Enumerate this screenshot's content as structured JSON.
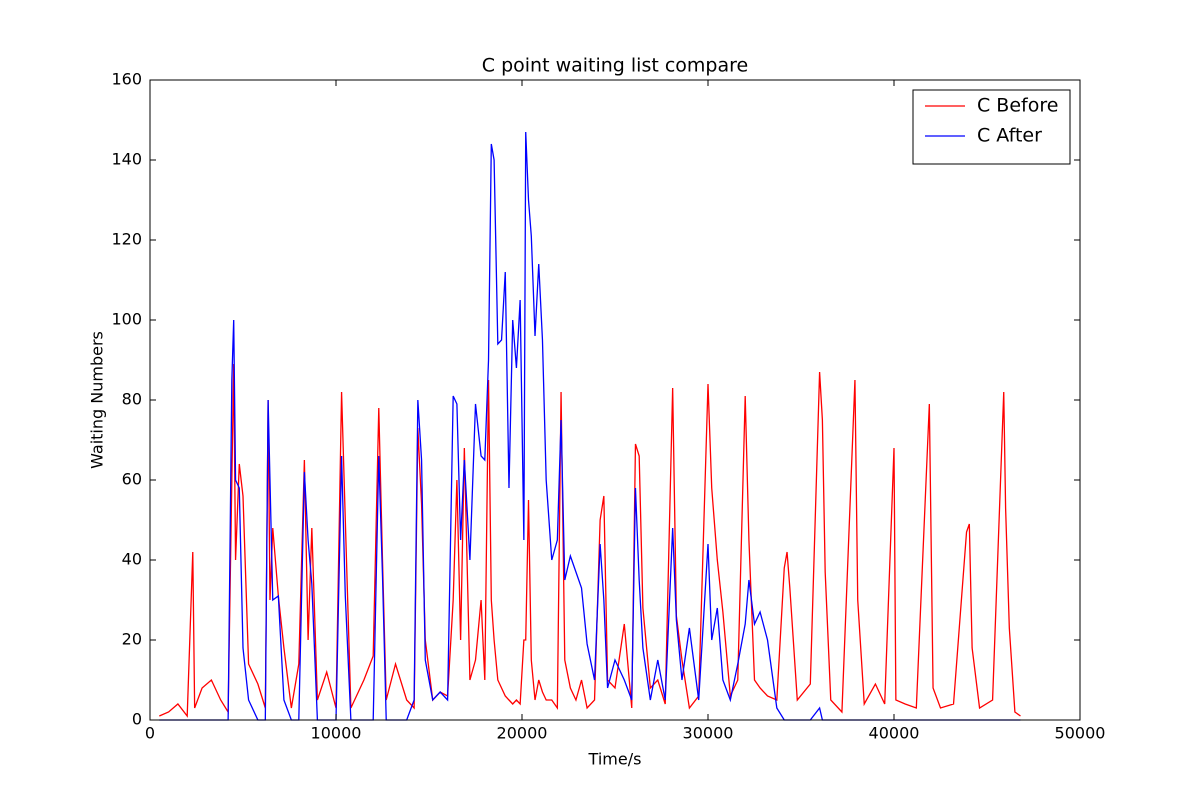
{
  "chart_data": {
    "type": "line",
    "title": "C point waiting list compare",
    "x_label": "Time/s",
    "y_label": "Waiting Numbers",
    "xlim": [
      0,
      50000
    ],
    "xticks": [
      0,
      10000,
      20000,
      30000,
      40000,
      50000
    ],
    "ylim": [
      0,
      160
    ],
    "yticks": [
      0,
      20,
      40,
      60,
      80,
      100,
      120,
      140,
      160
    ],
    "legend": "upper right",
    "x": [
      500,
      1000,
      1500,
      2000,
      2300,
      2400,
      2800,
      3300,
      3800,
      4200,
      4400,
      4500,
      4600,
      4800,
      5000,
      5300,
      5800,
      6200,
      6350,
      6450,
      6600,
      6900,
      7200,
      7600,
      8000,
      8300,
      8500,
      8700,
      9000,
      9500,
      10000,
      10300,
      10500,
      10800,
      11500,
      12000,
      12300,
      12500,
      12700,
      13200,
      13800,
      14200,
      14400,
      14600,
      14800,
      15200,
      15600,
      16000,
      16300,
      16500,
      16700,
      16900,
      17200,
      17500,
      17800,
      18000,
      18200,
      18350,
      18500,
      18700,
      18900,
      19100,
      19300,
      19500,
      19700,
      19900,
      20100,
      20200,
      20350,
      20500,
      20700,
      20900,
      21100,
      21300,
      21600,
      21900,
      22100,
      22300,
      22600,
      22900,
      23200,
      23500,
      23900,
      24200,
      24400,
      24600,
      25000,
      25500,
      25900,
      26100,
      26300,
      26500,
      26900,
      27300,
      27700,
      28100,
      28300,
      28600,
      29000,
      29500,
      30000,
      30200,
      30500,
      30800,
      31200,
      31600,
      32000,
      32200,
      32500,
      32800,
      33200,
      33700,
      34100,
      34250,
      34400,
      34800,
      35500,
      36000,
      36150,
      36300,
      36600,
      37200,
      37900,
      38050,
      38400,
      39000,
      39500,
      40000,
      40100,
      40600,
      41200,
      41900,
      42100,
      42500,
      43200,
      43900,
      44050,
      44200,
      44600,
      45300,
      45900,
      46000,
      46200,
      46500,
      46800
    ],
    "series": [
      {
        "name": "C Before",
        "color": "#ff0000",
        "values": [
          1,
          2,
          4,
          1,
          42,
          3,
          8,
          10,
          5,
          2,
          60,
          89,
          40,
          64,
          56,
          14,
          9,
          3,
          80,
          30,
          48,
          31,
          18,
          3,
          14,
          65,
          20,
          48,
          5,
          12,
          3,
          82,
          50,
          3,
          10,
          16,
          78,
          40,
          5,
          14,
          5,
          3,
          73,
          54,
          20,
          5,
          7,
          6,
          30,
          60,
          20,
          68,
          10,
          15,
          30,
          10,
          85,
          30,
          20,
          10,
          8,
          6,
          5,
          4,
          5,
          4,
          20,
          20,
          55,
          15,
          5,
          10,
          7,
          5,
          5,
          3,
          82,
          15,
          8,
          5,
          10,
          3,
          5,
          50,
          56,
          10,
          8,
          24,
          3,
          69,
          66,
          28,
          8,
          10,
          4,
          83,
          26,
          15,
          3,
          6,
          84,
          58,
          40,
          27,
          6,
          10,
          81,
          45,
          10,
          8,
          6,
          5,
          38,
          42,
          33,
          5,
          9,
          87,
          75,
          37,
          5,
          2,
          85,
          30,
          4,
          9,
          4,
          68,
          5,
          4,
          3,
          79,
          8,
          3,
          4,
          47,
          49,
          18,
          3,
          5,
          82,
          53,
          23,
          2,
          1
        ]
      },
      {
        "name": "C After",
        "color": "#0000ff",
        "values": [
          0,
          0,
          0,
          0,
          0,
          0,
          0,
          0,
          0,
          0,
          85,
          100,
          60,
          58,
          18,
          5,
          0,
          0,
          80,
          60,
          30,
          31,
          5,
          0,
          0,
          62,
          45,
          34,
          0,
          0,
          0,
          66,
          31,
          0,
          0,
          0,
          66,
          36,
          0,
          0,
          0,
          5,
          80,
          65,
          15,
          5,
          7,
          5,
          81,
          79,
          45,
          65,
          40,
          79,
          66,
          65,
          90,
          144,
          140,
          94,
          95,
          112,
          58,
          100,
          88,
          105,
          45,
          147,
          130,
          121,
          96,
          114,
          95,
          60,
          40,
          45,
          75,
          35,
          41,
          37,
          33,
          19,
          10,
          44,
          30,
          8,
          15,
          10,
          5,
          58,
          35,
          18,
          5,
          15,
          5,
          48,
          25,
          10,
          23,
          5,
          44,
          20,
          28,
          10,
          5,
          14,
          24,
          35,
          24,
          27,
          20,
          3,
          0,
          0,
          0,
          0,
          0,
          3,
          0,
          0,
          0,
          0,
          0,
          0,
          0,
          0,
          0,
          0,
          0,
          0,
          0,
          0,
          0,
          0,
          0,
          0,
          0,
          0,
          0,
          0,
          0,
          0,
          0,
          0,
          0
        ]
      }
    ]
  }
}
